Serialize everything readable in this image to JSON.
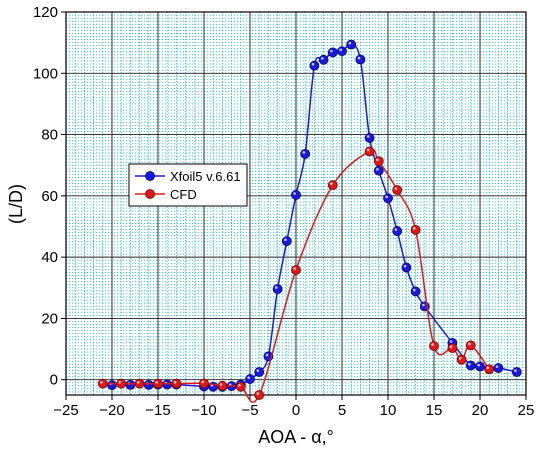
{
  "chart_data": {
    "type": "line",
    "xlabel": "AOA - α,°",
    "ylabel": "(L/D)",
    "xlim": [
      -25,
      25
    ],
    "ylim": [
      -5,
      120
    ],
    "x_ticks": [
      -25,
      -20,
      -15,
      -10,
      -5,
      0,
      5,
      10,
      15,
      20,
      25
    ],
    "y_ticks": [
      0,
      20,
      40,
      60,
      80,
      100,
      120
    ],
    "grid": true,
    "legend_position": "left-middle",
    "series": [
      {
        "name": "Xfoil5 v.6.61",
        "color": "#1a1adb",
        "x": [
          -20,
          -18,
          -16,
          -15,
          -14,
          -13,
          -10,
          -9,
          -8,
          -7,
          -6,
          -5,
          -4,
          -3,
          -2,
          -1,
          0,
          1,
          2,
          3,
          4,
          5,
          6,
          7,
          8,
          9,
          10,
          11,
          12,
          13,
          14,
          17,
          19,
          20,
          22,
          24
        ],
        "y": [
          -1.8,
          -1.7,
          -1.7,
          -1.6,
          -1.6,
          -1.6,
          -2.2,
          -2.3,
          -2.3,
          -2.1,
          -1.6,
          0.2,
          2.5,
          7.6,
          29.6,
          45.2,
          60.3,
          73.7,
          102.5,
          104.4,
          106.8,
          107.2,
          109.4,
          104.5,
          78.9,
          68.2,
          59.2,
          48.5,
          36.6,
          28.8,
          23.9,
          12.0,
          4.6,
          4.3,
          3.8,
          2.5
        ]
      },
      {
        "name": "CFD",
        "color": "#e01818",
        "x": [
          -21,
          -19,
          -17,
          -15,
          -13,
          -10,
          -8,
          -6,
          -4,
          0,
          4,
          8,
          9,
          11,
          13,
          15,
          17,
          18,
          19,
          21
        ],
        "y": [
          -1.3,
          -1.3,
          -1.3,
          -1.3,
          -1.3,
          -1.2,
          -2.0,
          -2.3,
          -5.0,
          35.8,
          63.5,
          74.5,
          71.3,
          61.9,
          48.9,
          11.0,
          10.3,
          6.5,
          11.2,
          3.4
        ]
      }
    ]
  }
}
